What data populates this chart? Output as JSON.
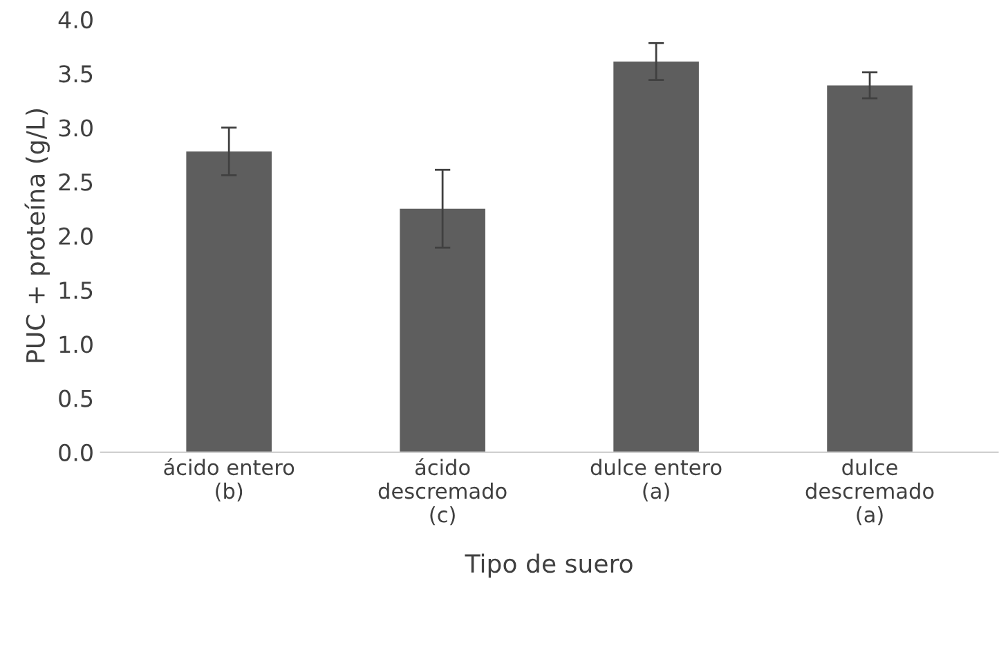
{
  "chart_data": {
    "type": "bar",
    "xlabel": "Tipo de suero",
    "ylabel": "PUC + proteína (g/L)",
    "categories": [
      "ácido entero\n(b)",
      "ácido\ndescremado\n(c)",
      "dulce entero\n(a)",
      "dulce\ndescremado\n(a)"
    ],
    "values": [
      2.78,
      2.25,
      3.61,
      3.39
    ],
    "errors": [
      0.22,
      0.36,
      0.17,
      0.12
    ],
    "color": "#5e5e5e",
    "ylim": [
      0,
      4
    ],
    "yticks": [
      {
        "value": 0,
        "label": "0.0"
      },
      {
        "value": 0.5,
        "label": "0.5"
      },
      {
        "value": 1,
        "label": "1.0"
      },
      {
        "value": 1.5,
        "label": "1.5"
      },
      {
        "value": 2,
        "label": "2.0"
      },
      {
        "value": 2.5,
        "label": "2.5"
      },
      {
        "value": 3,
        "label": "3.0"
      },
      {
        "value": 3.5,
        "label": "3.5"
      },
      {
        "value": 4,
        "label": "4.0"
      }
    ],
    "grid": false
  }
}
